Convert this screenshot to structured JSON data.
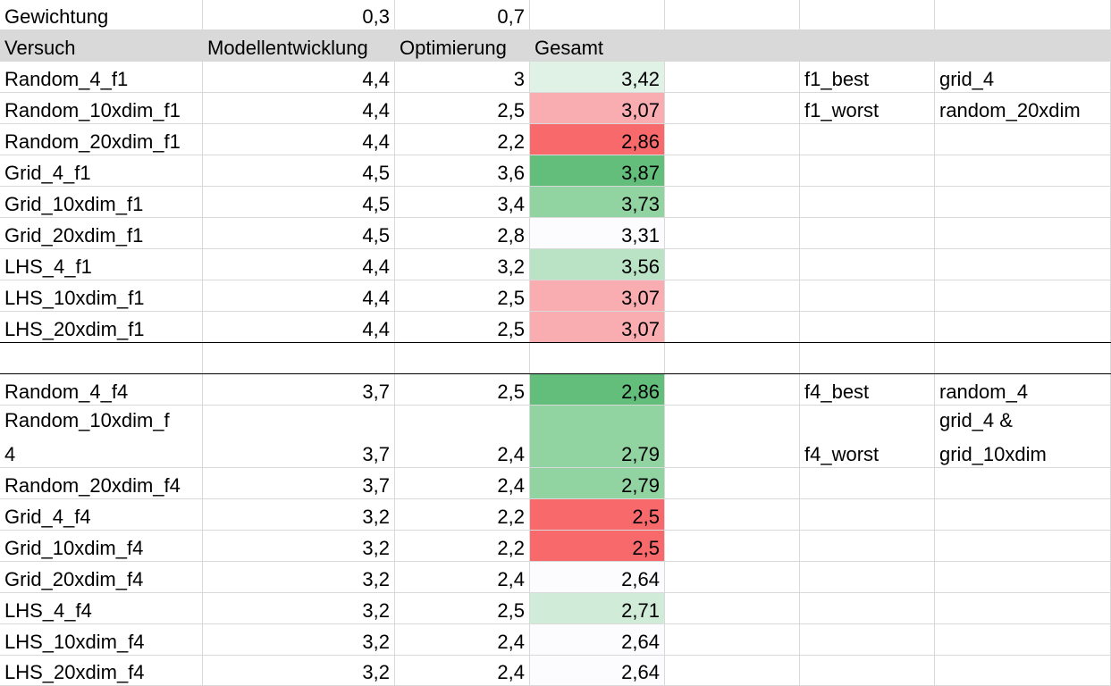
{
  "colors": {
    "header_bg": "#d9d9d9",
    "grid": "#d9d9d9",
    "green_strong": "#63be7b",
    "green_mid": "#91d3a1",
    "green_soft": "#b9e3c4",
    "green_pale": "#dff2e5",
    "red_strong": "#f8696b",
    "red_soft": "#f9adb0",
    "neutral": "#fcfcff"
  },
  "weights": {
    "label": "Gewichtung",
    "modell": "0,3",
    "optim": "0,7"
  },
  "header": {
    "versuch": "Versuch",
    "modell": "Modellentwicklung",
    "optim": "Optimierung",
    "gesamt": "Gesamt"
  },
  "block1": [
    {
      "versuch": "Random_4_f1",
      "modell": "4,4",
      "optim": "3",
      "gesamt": "3,42",
      "fill": "#dff2e5"
    },
    {
      "versuch": "Random_10xdim_f1",
      "modell": "4,4",
      "optim": "2,5",
      "gesamt": "3,07",
      "fill": "#f9adb0"
    },
    {
      "versuch": "Random_20xdim_f1",
      "modell": "4,4",
      "optim": "2,2",
      "gesamt": "2,86",
      "fill": "#f8696b"
    },
    {
      "versuch": "Grid_4_f1",
      "modell": "4,5",
      "optim": "3,6",
      "gesamt": "3,87",
      "fill": "#63be7b"
    },
    {
      "versuch": "Grid_10xdim_f1",
      "modell": "4,5",
      "optim": "3,4",
      "gesamt": "3,73",
      "fill": "#91d3a1"
    },
    {
      "versuch": "Grid_20xdim_f1",
      "modell": "4,5",
      "optim": "2,8",
      "gesamt": "3,31",
      "fill": "#fcfcff"
    },
    {
      "versuch": "LHS_4_f1",
      "modell": "4,4",
      "optim": "3,2",
      "gesamt": "3,56",
      "fill": "#b9e3c4"
    },
    {
      "versuch": "LHS_10xdim_f1",
      "modell": "4,4",
      "optim": "2,5",
      "gesamt": "3,07",
      "fill": "#f9adb0"
    },
    {
      "versuch": "LHS_20xdim_f1",
      "modell": "4,4",
      "optim": "2,5",
      "gesamt": "3,07",
      "fill": "#f9adb0"
    }
  ],
  "side1": {
    "best_label": "f1_best",
    "best_value": "grid_4",
    "worst_label": "f1_worst",
    "worst_value": "random_20xdim"
  },
  "block2": {
    "r1": {
      "versuch": "Random_4_f4",
      "modell": "3,7",
      "optim": "2,5",
      "gesamt": "2,86",
      "fill": "#63be7b"
    },
    "r2": {
      "versuch_line1": "Random_10xdim_f",
      "versuch_line2": "4",
      "modell": "3,7",
      "optim": "2,4",
      "gesamt": "2,79",
      "fill": "#91d3a1"
    },
    "rest": [
      {
        "versuch": "Random_20xdim_f4",
        "modell": "3,7",
        "optim": "2,4",
        "gesamt": "2,79",
        "fill": "#91d3a1"
      },
      {
        "versuch": "Grid_4_f4",
        "modell": "3,2",
        "optim": "2,2",
        "gesamt": "2,5",
        "fill": "#f8696b"
      },
      {
        "versuch": "Grid_10xdim_f4",
        "modell": "3,2",
        "optim": "2,2",
        "gesamt": "2,5",
        "fill": "#f8696b"
      },
      {
        "versuch": "Grid_20xdim_f4",
        "modell": "3,2",
        "optim": "2,4",
        "gesamt": "2,64",
        "fill": "#fcfcff"
      },
      {
        "versuch": "LHS_4_f4",
        "modell": "3,2",
        "optim": "2,5",
        "gesamt": "2,71",
        "fill": "#d0ecd9"
      },
      {
        "versuch": "LHS_10xdim_f4",
        "modell": "3,2",
        "optim": "2,4",
        "gesamt": "2,64",
        "fill": "#fcfcff"
      },
      {
        "versuch": "LHS_20xdim_f4",
        "modell": "3,2",
        "optim": "2,4",
        "gesamt": "2,64",
        "fill": "#fcfcff"
      }
    ]
  },
  "side2": {
    "best_label": "f4_best",
    "best_value": "random_4",
    "worst_label": "f4_worst",
    "worst_value_line1": "grid_4 &",
    "worst_value_line2": "grid_10xdim"
  }
}
